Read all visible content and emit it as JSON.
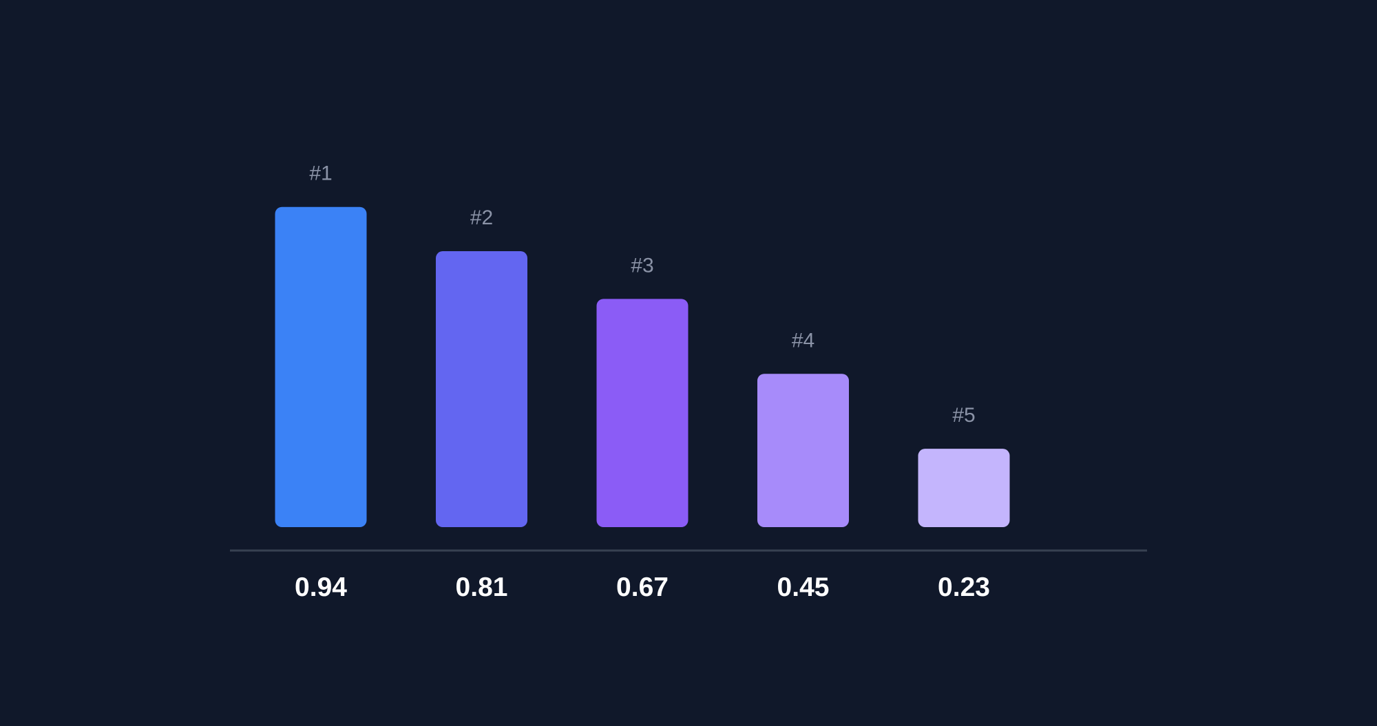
{
  "chart_data": {
    "type": "bar",
    "categories": [
      "#1",
      "#2",
      "#3",
      "#4",
      "#5"
    ],
    "values": [
      0.94,
      0.81,
      0.67,
      0.45,
      0.23
    ],
    "value_labels": [
      "0.94",
      "0.81",
      "0.67",
      "0.45",
      "0.23"
    ],
    "bar_colors": [
      "#3b82f6",
      "#6366f1",
      "#8b5cf6",
      "#a78bfa",
      "#c4b5fd"
    ],
    "title": "",
    "xlabel": "",
    "ylabel": "",
    "ylim": [
      0,
      1
    ],
    "grid": false,
    "legend": "none"
  },
  "colors": {
    "background": "#10182a",
    "baseline": "#374151",
    "rank_text": "#8b93a7",
    "value_text": "#ffffff"
  }
}
